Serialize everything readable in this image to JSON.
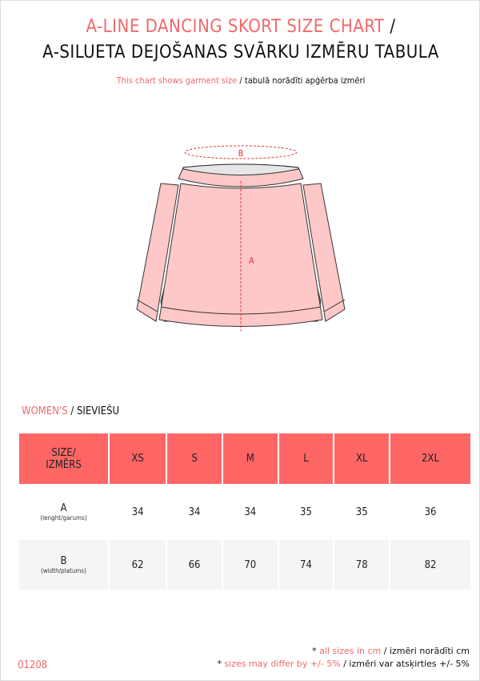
{
  "title": {
    "en": "A-LINE DANCING SKORT SIZE CHART",
    "sep": " /",
    "lv": "A-SILUETA DEJOŠANAS SVĀRKU IZMĒRU TABULA"
  },
  "subtitle": {
    "en": "This chart shows garment size",
    "lv": " / tabulā norādīti apģērba izmēri"
  },
  "diagram": {
    "label_a": "A",
    "label_b": "B"
  },
  "section": {
    "en": "WOMEN'S",
    "lv": " / SIEVIEŠU"
  },
  "table": {
    "header": {
      "label1": "SIZE/",
      "label2": "IZMĒRS",
      "sizes": [
        "XS",
        "S",
        "M",
        "L",
        "XL",
        "2XL"
      ]
    },
    "rows": [
      {
        "label": "A",
        "sub": "(lenght/garums)",
        "values": [
          "34",
          "34",
          "34",
          "35",
          "35",
          "36"
        ]
      },
      {
        "label": "B",
        "sub": "(width/platums)",
        "values": [
          "62",
          "66",
          "70",
          "74",
          "78",
          "82"
        ]
      }
    ]
  },
  "notes": [
    {
      "star": "* ",
      "en": "all sizes in cm",
      "lv": " / izmēri norādīti cm"
    },
    {
      "star": "* ",
      "en": "sizes may differ by +/- 5%",
      "lv": " / izmēri var atsķirties +/- 5%"
    }
  ],
  "product_code": "01208",
  "colors": {
    "accent": "#f0686a",
    "header_bg": "#fe6666",
    "skirt": "#ffc8c8"
  }
}
